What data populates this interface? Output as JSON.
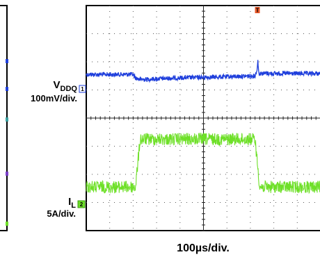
{
  "chart_data": {
    "type": "line",
    "title": "",
    "grid": true,
    "x_divisions": 10,
    "y_divisions": 8,
    "xlabel": "100µs/div.",
    "trigger_marker": "T",
    "trigger_x_div": 7.3,
    "series": [
      {
        "name_main": "V",
        "name_sub": "DDQ",
        "scale_label": "100mV/div.",
        "channel_marker": "1",
        "color": "#1f3fdc",
        "baseline_div": 2.45,
        "points": [
          [
            0,
            0
          ],
          [
            2.0,
            0
          ],
          [
            2.1,
            -0.12
          ],
          [
            2.3,
            -0.18
          ],
          [
            4.0,
            -0.12
          ],
          [
            6.0,
            -0.08
          ],
          [
            7.2,
            -0.05
          ],
          [
            7.3,
            0.22
          ],
          [
            7.32,
            0.55
          ],
          [
            7.36,
            0.02
          ],
          [
            7.4,
            0.04
          ],
          [
            10,
            0.03
          ]
        ],
        "noise_div": 0.08
      },
      {
        "name_main": "I",
        "name_sub": "L",
        "scale_label": "5A/div.",
        "channel_marker": "2",
        "color": "#6ee028",
        "baseline_div": 6.45,
        "points": [
          [
            0,
            0
          ],
          [
            2.1,
            0
          ],
          [
            2.3,
            1.7
          ],
          [
            7.2,
            1.7
          ],
          [
            7.4,
            0
          ],
          [
            10,
            0
          ]
        ],
        "noise_div": 0.22
      }
    ]
  },
  "colors": {
    "background": "#ffffff",
    "grid_frame": "#000000",
    "grid_dots": "#555555",
    "trigger": "#e8582a",
    "left_panel_edge": "#000000",
    "left_markers": [
      "#1f3fdc",
      "#1f3fdc",
      "#3aa0a0",
      "#7a3fc8",
      "#6ee028"
    ]
  }
}
